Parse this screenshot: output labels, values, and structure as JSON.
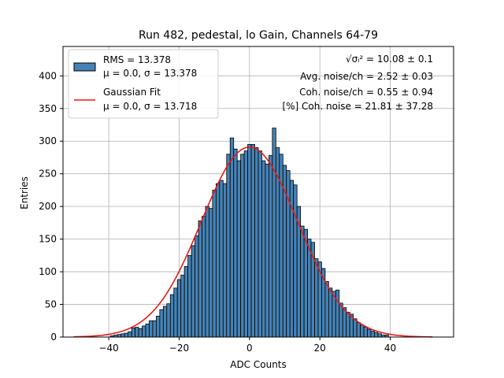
{
  "chart_data": {
    "type": "bar",
    "title": "Run 482, pedestal, lo Gain, Channels 64-79",
    "xlabel": "ADC Counts",
    "ylabel": "Entries",
    "xlim": [
      -53,
      58
    ],
    "ylim": [
      0,
      445
    ],
    "xticks": [
      -40,
      -20,
      0,
      20,
      40
    ],
    "yticks": [
      0,
      50,
      100,
      150,
      200,
      250,
      300,
      350,
      400
    ],
    "grid": true,
    "bin_width": 1,
    "histogram": {
      "name": "RMS = 13.378",
      "stats_label": "μ = 0.0, σ = 13.378",
      "color": "#4682b4",
      "edgecolor": "#000000",
      "x": [
        -39,
        -38,
        -37,
        -36,
        -35,
        -34,
        -33,
        -32,
        -31,
        -30,
        -29,
        -28,
        -27,
        -26,
        -25,
        -24,
        -23,
        -22,
        -21,
        -20,
        -19,
        -18,
        -17,
        -16,
        -15,
        -14,
        -13,
        -12,
        -11,
        -10,
        -9,
        -8,
        -7,
        -6,
        -5,
        -4,
        -3,
        -2,
        -1,
        0,
        1,
        2,
        3,
        4,
        5,
        6,
        7,
        8,
        9,
        10,
        11,
        12,
        13,
        14,
        15,
        16,
        17,
        18,
        19,
        20,
        21,
        22,
        23,
        24,
        25,
        26,
        27,
        28,
        29,
        30,
        31,
        32,
        33,
        34,
        35,
        36,
        37,
        38,
        39
      ],
      "values": [
        2,
        3,
        4,
        5,
        6,
        8,
        14,
        15,
        13,
        17,
        20,
        25,
        25,
        32,
        42,
        47,
        51,
        65,
        75,
        88,
        95,
        108,
        125,
        140,
        155,
        178,
        185,
        200,
        197,
        225,
        235,
        240,
        235,
        280,
        305,
        288,
        270,
        280,
        285,
        295,
        295,
        290,
        285,
        270,
        265,
        278,
        320,
        290,
        280,
        263,
        255,
        240,
        233,
        200,
        170,
        165,
        150,
        145,
        120,
        115,
        105,
        85,
        75,
        70,
        72,
        52,
        45,
        38,
        35,
        28,
        22,
        18,
        15,
        12,
        9,
        7,
        5,
        3,
        3
      ]
    },
    "fit": {
      "name": "Gaussian Fit",
      "stats_label": "μ = 0.0, σ = 13.718",
      "color": "#e41a1c",
      "mu": 0.0,
      "sigma": 13.718,
      "amplitude": 291,
      "x_range": [
        -50,
        52
      ]
    },
    "annotations": {
      "sqrt_sigma": "√σᵢ² = 10.08 ± 0.1",
      "avg_noise": "Avg. noise/ch = 2.52 ± 0.03",
      "coh_noise": "Coh. noise/ch = 0.55 ± 0.94",
      "pct_coh_noise": "[%] Coh. noise = 21.81 ± 37.28"
    },
    "legend_position": "top-left"
  }
}
